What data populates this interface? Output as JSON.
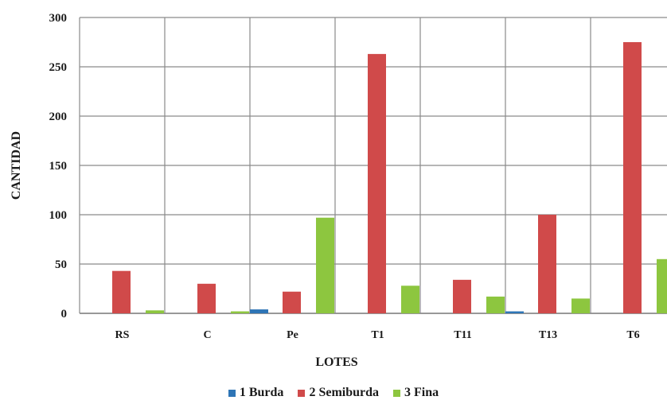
{
  "chart_data": {
    "type": "bar",
    "categories": [
      "RS",
      "C",
      "Pe",
      "T1",
      "T11",
      "T13",
      "T6"
    ],
    "series": [
      {
        "name": "1 Burda",
        "color": "#2e75b6",
        "values": [
          0,
          0,
          4,
          0,
          0,
          2,
          0
        ]
      },
      {
        "name": "2 Semiburda",
        "color": "#d04a4a",
        "values": [
          43,
          30,
          22,
          263,
          34,
          100,
          275
        ]
      },
      {
        "name": "3 Fina",
        "color": "#8dc63f",
        "values": [
          3,
          2,
          97,
          28,
          17,
          15,
          55
        ]
      }
    ],
    "title": "",
    "xlabel": "LOTES",
    "ylabel": "CANTIDAD",
    "ylim": [
      0,
      300
    ],
    "yticks": [
      "0",
      "50",
      "100",
      "150",
      "200",
      "250",
      "300"
    ],
    "grid": true,
    "legend_position": "bottom"
  }
}
